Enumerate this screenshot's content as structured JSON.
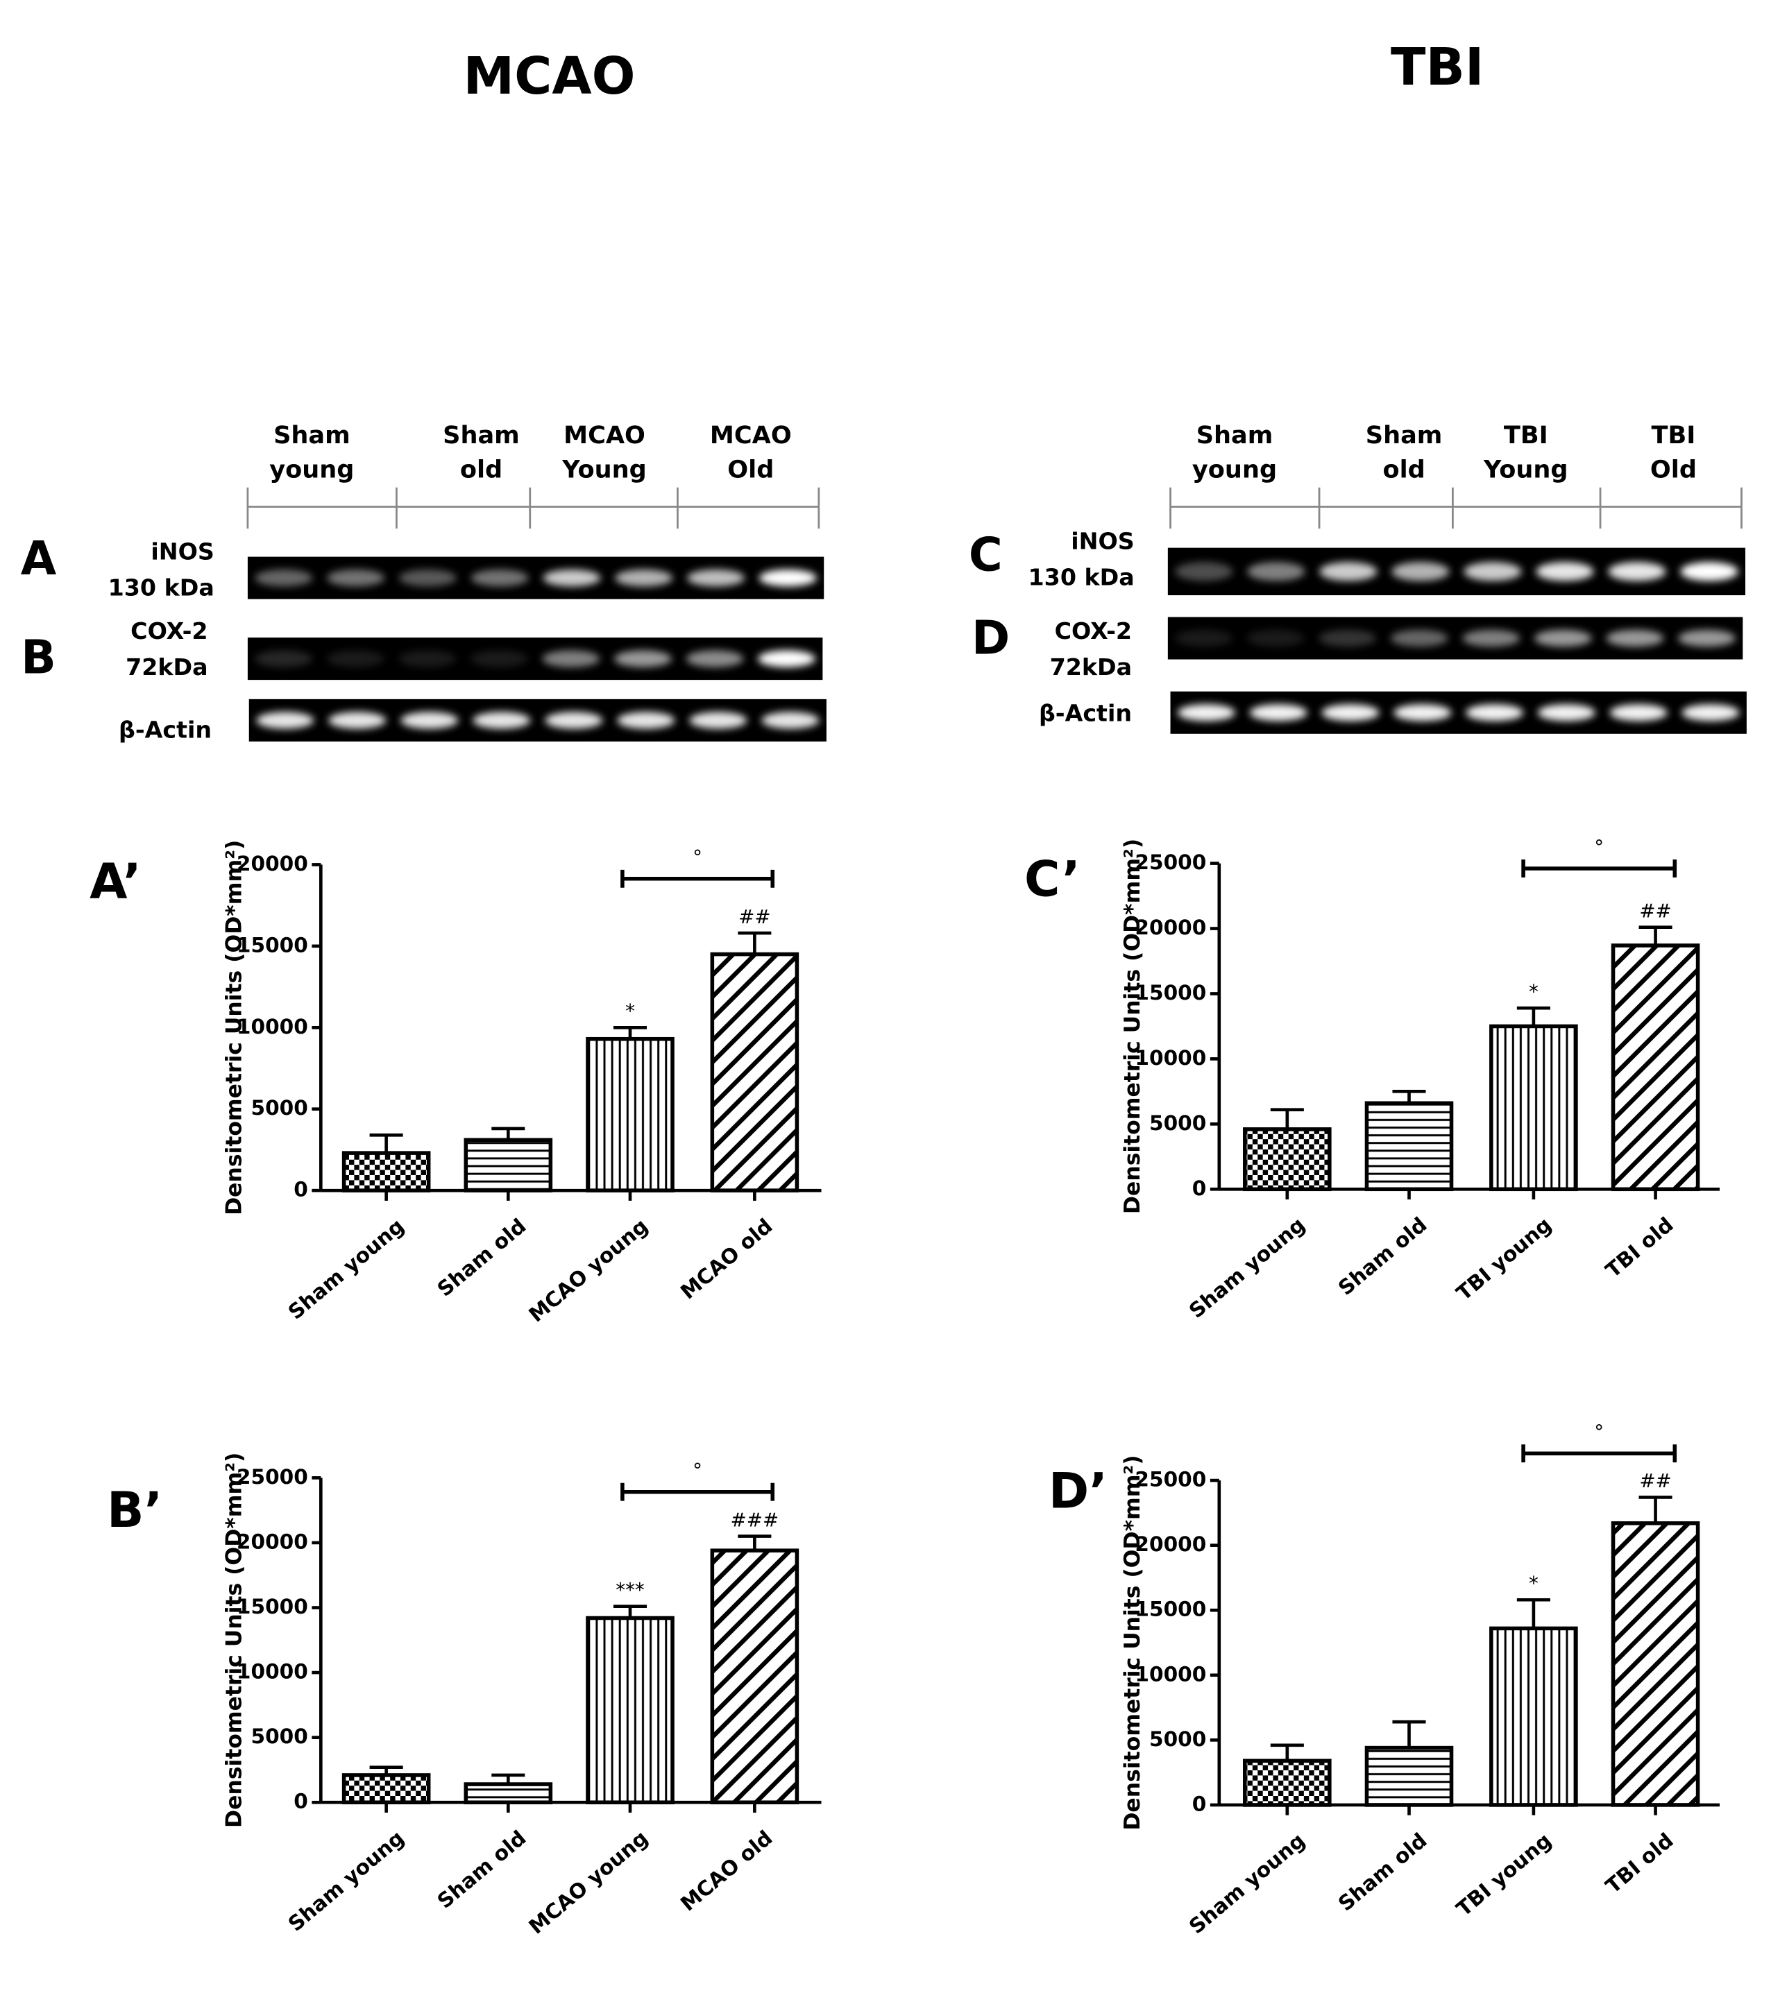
{
  "headings": {
    "left": "MCAO",
    "right": "TBI"
  },
  "blots": [
    {
      "lanes": [
        [
          "Sham",
          "young"
        ],
        [
          "Sham",
          "old"
        ],
        [
          "MCAO",
          "Young"
        ],
        [
          "MCAO",
          "Old"
        ]
      ],
      "rows": [
        {
          "letter": "A",
          "label": [
            "iNOS",
            "130 kDa"
          ]
        },
        {
          "letter": "B",
          "label": [
            "COX-2",
            "72kDa"
          ]
        },
        {
          "label": [
            "β-Actin"
          ]
        }
      ]
    },
    {
      "lanes": [
        [
          "Sham",
          "young"
        ],
        [
          "Sham",
          "old"
        ],
        [
          "TBI",
          "Young"
        ],
        [
          "TBI",
          "Old"
        ]
      ],
      "rows": [
        {
          "letter": "C",
          "label": [
            "iNOS",
            "130 kDa"
          ]
        },
        {
          "letter": "D",
          "label": [
            "COX-2",
            "72kDa"
          ]
        },
        {
          "label": [
            "β-Actin"
          ]
        }
      ]
    }
  ],
  "chart_data": [
    {
      "type": "bar",
      "panel": "A’",
      "ylabel": "Densitometric Units (OD*mm²)",
      "categories": [
        "Sham young",
        "Sham old",
        "MCAO young",
        "MCAO old"
      ],
      "values": [
        2300,
        3100,
        9300,
        14500
      ],
      "errors": [
        1100,
        700,
        700,
        1300
      ],
      "significance": [
        null,
        null,
        "*",
        "##"
      ],
      "bracket_label": "°",
      "patterns": [
        "checker",
        "horizontal",
        "vertical",
        "diagonal"
      ],
      "color": "#000000",
      "ylim": [
        0,
        20000
      ],
      "yticks": [
        0,
        5000,
        10000,
        15000,
        20000
      ]
    },
    {
      "type": "bar",
      "panel": "B’",
      "ylabel": "Densitometric Units (OD*mm²)",
      "categories": [
        "Sham young",
        "Sham old",
        "MCAO young",
        "MCAO old"
      ],
      "values": [
        2100,
        1400,
        14200,
        19400
      ],
      "errors": [
        600,
        700,
        900,
        1100
      ],
      "significance": [
        null,
        null,
        "***",
        "###"
      ],
      "bracket_label": "°",
      "patterns": [
        "checker",
        "horizontal",
        "vertical",
        "diagonal"
      ],
      "color": "#000000",
      "ylim": [
        0,
        25000
      ],
      "yticks": [
        0,
        5000,
        10000,
        15000,
        20000,
        25000
      ]
    },
    {
      "type": "bar",
      "panel": "C’",
      "ylabel": "Densitometric Units (OD*mm²)",
      "categories": [
        "Sham young",
        "Sham old",
        "TBI young",
        "TBI old"
      ],
      "values": [
        4600,
        6600,
        12500,
        18700
      ],
      "errors": [
        1500,
        900,
        1400,
        1400
      ],
      "significance": [
        null,
        null,
        "*",
        "##"
      ],
      "bracket_label": "°",
      "patterns": [
        "checker",
        "horizontal",
        "vertical",
        "diagonal"
      ],
      "color": "#000000",
      "ylim": [
        0,
        25000
      ],
      "yticks": [
        0,
        5000,
        10000,
        15000,
        20000,
        25000
      ]
    },
    {
      "type": "bar",
      "panel": "D’",
      "ylabel": "Densitometric Units (OD*mm²)",
      "categories": [
        "Sham young",
        "Sham old",
        "TBI young",
        "TBI old"
      ],
      "values": [
        3400,
        4400,
        13600,
        21700
      ],
      "errors": [
        1200,
        2000,
        2200,
        2000
      ],
      "significance": [
        null,
        null,
        "*",
        "##"
      ],
      "bracket_label": "°",
      "patterns": [
        "checker",
        "horizontal",
        "vertical",
        "diagonal"
      ],
      "color": "#000000",
      "ylim": [
        0,
        25000
      ],
      "yticks": [
        0,
        5000,
        10000,
        15000,
        20000,
        25000
      ]
    }
  ]
}
